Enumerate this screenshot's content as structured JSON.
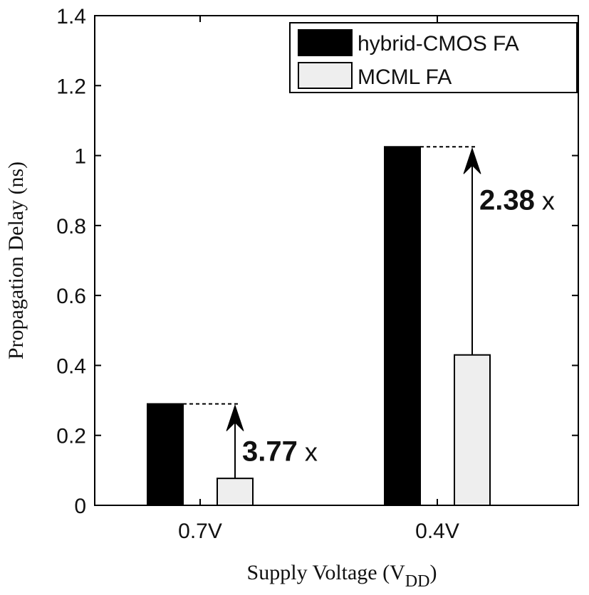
{
  "chart_data": {
    "type": "bar",
    "title": "",
    "xlabel": "Supply Voltage (V",
    "xlabel_sub": "DD",
    "xlabel_close": ")",
    "ylabel": "Propagation Delay (ns)",
    "categories": [
      "0.7V",
      "0.4V"
    ],
    "ylim": [
      0,
      1.4
    ],
    "yticks": [
      0,
      0.2,
      0.4,
      0.6,
      0.8,
      1,
      1.2,
      1.4
    ],
    "ytick_labels": [
      "0",
      "0.2",
      "0.4",
      "0.6",
      "0.8",
      "1",
      "1.2",
      "1.4"
    ],
    "legend_position": "top-right",
    "grid": false,
    "series": [
      {
        "name": "hybrid-CMOS FA",
        "color": "#000000",
        "values": [
          0.29,
          1.025
        ]
      },
      {
        "name": "MCML FA",
        "color": "#eeeeee",
        "values": [
          0.077,
          0.43
        ]
      }
    ],
    "annotations": [
      {
        "category": "0.7V",
        "ratio": "3.77",
        "unit": "x"
      },
      {
        "category": "0.4V",
        "ratio": "2.38",
        "unit": "x"
      }
    ]
  }
}
